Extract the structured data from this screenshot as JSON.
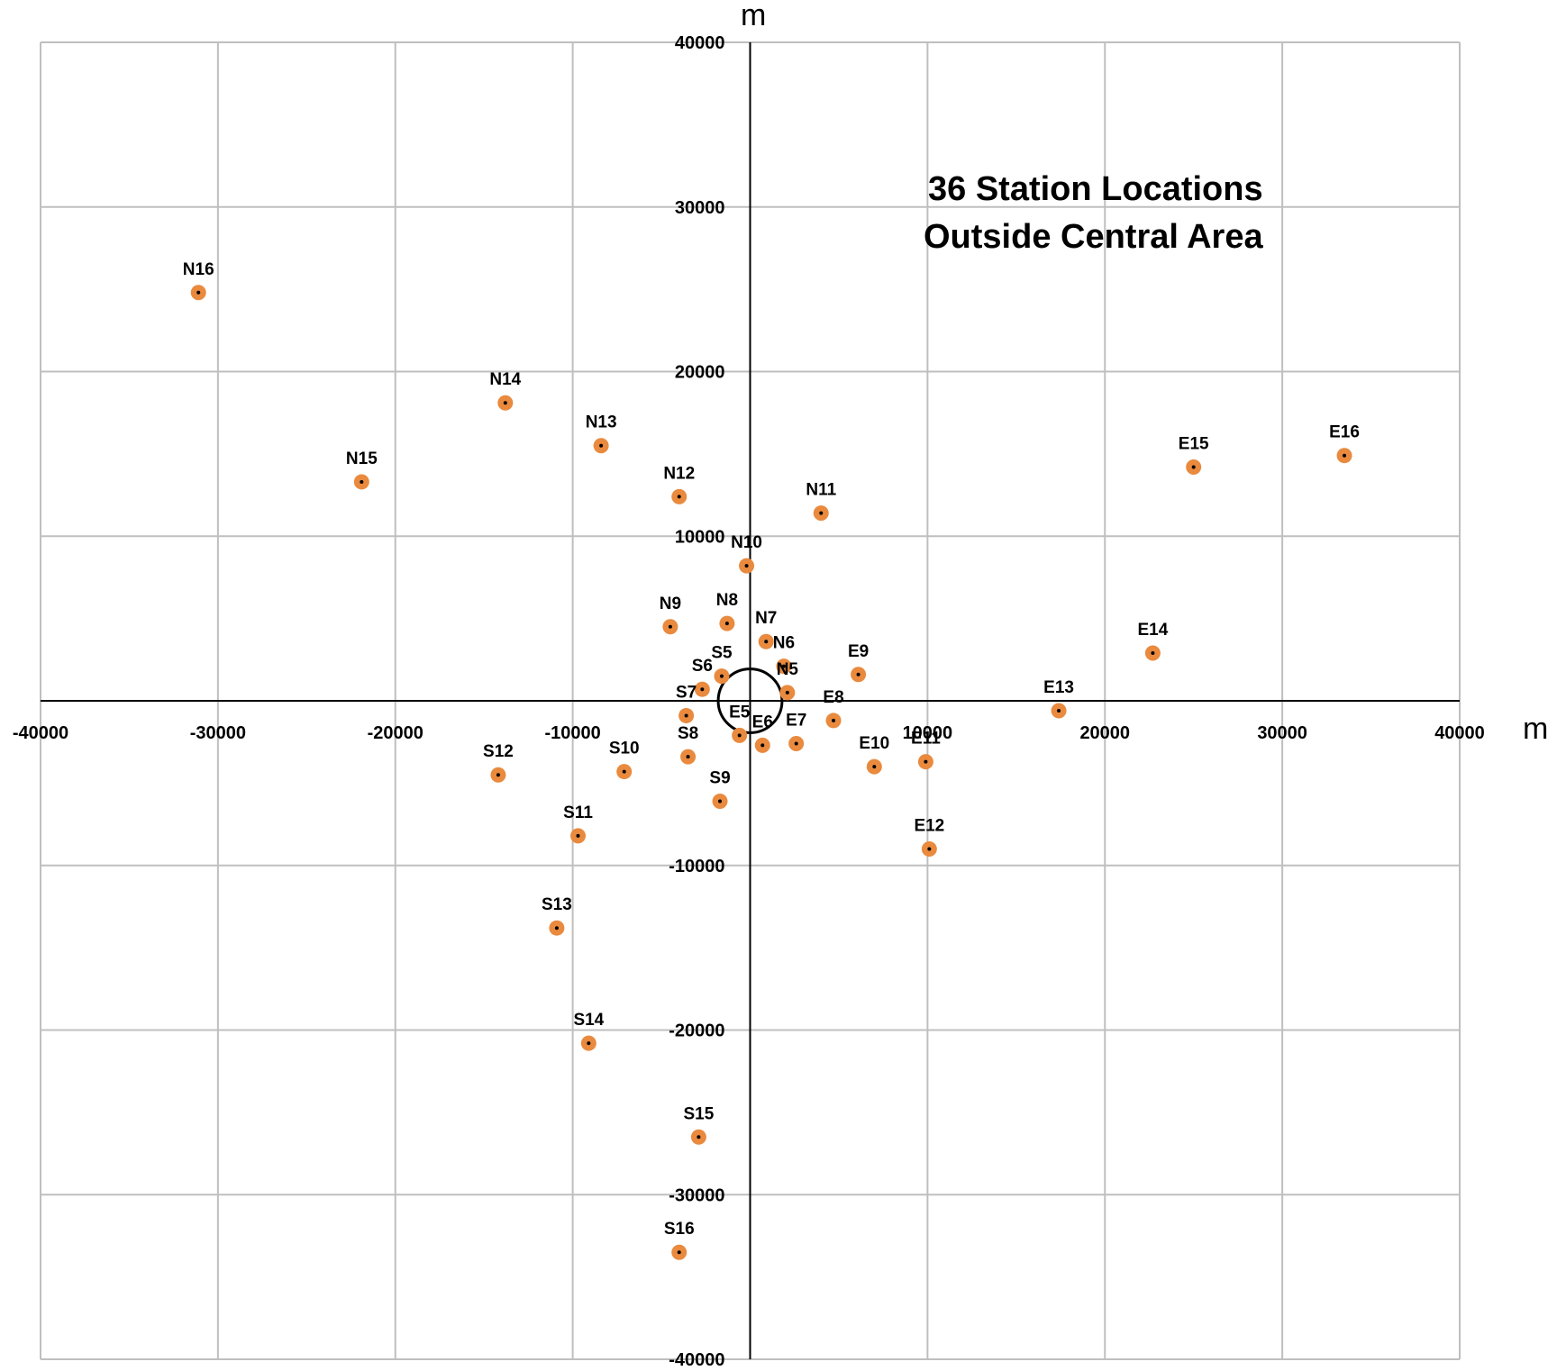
{
  "chart_data": {
    "type": "scatter",
    "title_lines": [
      "36 Station Locations",
      "Outside Central Area"
    ],
    "xlabel": "m",
    "ylabel": "m",
    "xlim": [
      -40000,
      40000
    ],
    "ylim": [
      -40000,
      40000
    ],
    "x_ticks": [
      -40000,
      -30000,
      -20000,
      -10000,
      0,
      10000,
      20000,
      30000,
      40000
    ],
    "y_ticks": [
      -40000,
      -30000,
      -20000,
      -10000,
      0,
      10000,
      20000,
      30000,
      40000
    ],
    "x_tick_labels": [
      "-40000",
      "-30000",
      "-20000",
      "-10000",
      "",
      "10000",
      "20000",
      "30000",
      "40000"
    ],
    "y_tick_labels": [
      "-40000",
      "-30000",
      "-20000",
      "-10000",
      "",
      "10000",
      "20000",
      "30000",
      "40000"
    ],
    "grid": true,
    "colors": {
      "marker": "#E98A3E",
      "marker_center": "#000000",
      "grid": "#BFBFBF",
      "axis": "#000000"
    },
    "central_area": {
      "shape": "circle",
      "center_x": 0,
      "center_y": 0,
      "radius": 1800
    },
    "points": [
      {
        "label": "N5",
        "x": 2100,
        "y": 500
      },
      {
        "label": "N6",
        "x": 1900,
        "y": 2100
      },
      {
        "label": "N7",
        "x": 900,
        "y": 3600
      },
      {
        "label": "N8",
        "x": -1300,
        "y": 4700
      },
      {
        "label": "N9",
        "x": -4500,
        "y": 4500
      },
      {
        "label": "N10",
        "x": -200,
        "y": 8200
      },
      {
        "label": "N11",
        "x": 4000,
        "y": 11400
      },
      {
        "label": "N12",
        "x": -4000,
        "y": 12400
      },
      {
        "label": "N13",
        "x": -8400,
        "y": 15500
      },
      {
        "label": "N14",
        "x": -13800,
        "y": 18100
      },
      {
        "label": "N15",
        "x": -21900,
        "y": 13300
      },
      {
        "label": "N16",
        "x": -31100,
        "y": 24800
      },
      {
        "label": "S5",
        "x": -1600,
        "y": 1500
      },
      {
        "label": "S6",
        "x": -2700,
        "y": 700
      },
      {
        "label": "S7",
        "x": -3600,
        "y": -900
      },
      {
        "label": "S8",
        "x": -3500,
        "y": -3400
      },
      {
        "label": "S9",
        "x": -1700,
        "y": -6100
      },
      {
        "label": "S10",
        "x": -7100,
        "y": -4300
      },
      {
        "label": "S11",
        "x": -9700,
        "y": -8200
      },
      {
        "label": "S12",
        "x": -14200,
        "y": -4500
      },
      {
        "label": "S13",
        "x": -10900,
        "y": -13800
      },
      {
        "label": "S14",
        "x": -9100,
        "y": -20800
      },
      {
        "label": "S15",
        "x": -2900,
        "y": -26500
      },
      {
        "label": "S16",
        "x": -4000,
        "y": -33500
      },
      {
        "label": "E5",
        "x": -600,
        "y": -2100
      },
      {
        "label": "E6",
        "x": 700,
        "y": -2700
      },
      {
        "label": "E7",
        "x": 2600,
        "y": -2600
      },
      {
        "label": "E8",
        "x": 4700,
        "y": -1200
      },
      {
        "label": "E9",
        "x": 6100,
        "y": 1600
      },
      {
        "label": "E10",
        "x": 7000,
        "y": -4000
      },
      {
        "label": "E11",
        "x": 9900,
        "y": -3700
      },
      {
        "label": "E12",
        "x": 10100,
        "y": -9000
      },
      {
        "label": "E13",
        "x": 17400,
        "y": -600
      },
      {
        "label": "E14",
        "x": 22700,
        "y": 2900
      },
      {
        "label": "E15",
        "x": 25000,
        "y": 14200
      },
      {
        "label": "E16",
        "x": 33500,
        "y": 14900
      }
    ]
  }
}
